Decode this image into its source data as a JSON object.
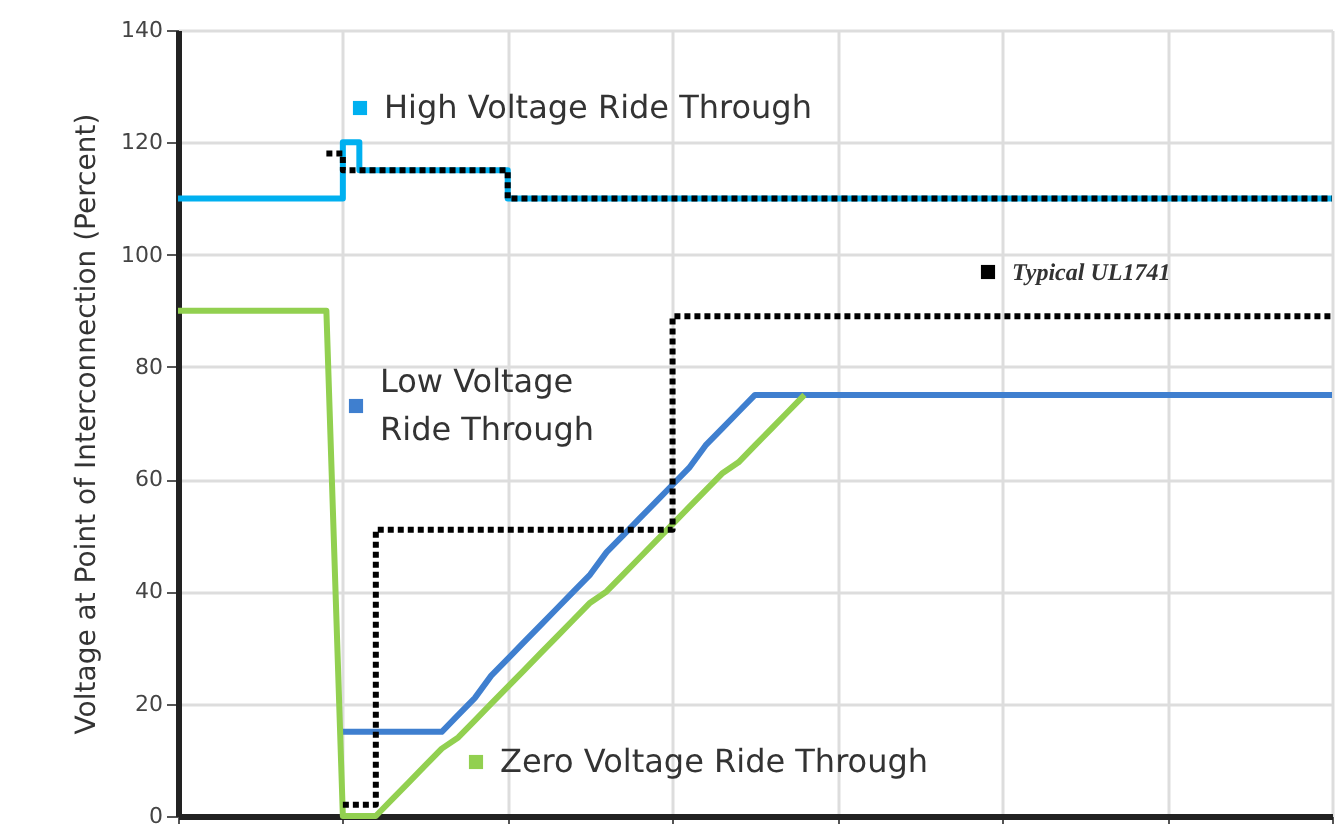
{
  "chart_data": {
    "type": "line",
    "ylabel": "Voltage at Point of Interconnection (Percent)",
    "categories": [
      null,
      null,
      null,
      null,
      null,
      null,
      null,
      null,
      null,
      null,
      null,
      null,
      null,
      null,
      null,
      null,
      null,
      null,
      null,
      null,
      null,
      null,
      null,
      null,
      null,
      null,
      null,
      null,
      null,
      null,
      null,
      null,
      null,
      null,
      null,
      null,
      null,
      null,
      null,
      null,
      null,
      null,
      null,
      null,
      null,
      null,
      null,
      null,
      null,
      null,
      null,
      null,
      null,
      null,
      null,
      null,
      null,
      null,
      null,
      null,
      null,
      null,
      null,
      null,
      null,
      null,
      null,
      null,
      null,
      null,
      null
    ],
    "ylim": [
      0,
      140
    ],
    "yticks": [
      0,
      20,
      40,
      60,
      80,
      100,
      120,
      140
    ],
    "tick_labels": "y",
    "grid": true,
    "marker": "none",
    "legend": "bottom right",
    "series": [
      {
        "name": "High Voltage Ride Through",
        "color": "#00b0f0",
        "type": "step",
        "line_style": "solid",
        "values": [
          110,
          110,
          110,
          110,
          110,
          110,
          110,
          110,
          110,
          110,
          120,
          115,
          115,
          115,
          115,
          115,
          115,
          115,
          115,
          115,
          110,
          110,
          110,
          110,
          110,
          110,
          110,
          110,
          110,
          110,
          110,
          110,
          110,
          110,
          110,
          110,
          110,
          110,
          110,
          110,
          110,
          110,
          110,
          110,
          110,
          110,
          110,
          110,
          110,
          110,
          110,
          110,
          110,
          110,
          110,
          110,
          110,
          110,
          110,
          110,
          110,
          110,
          110,
          110,
          110,
          110,
          110,
          110,
          110,
          110,
          110
        ]
      },
      {
        "name": "Low Voltage Ride Through",
        "color": "#3f7fcf",
        "line_style": "solid",
        "values": [
          null,
          null,
          null,
          null,
          null,
          null,
          null,
          null,
          null,
          null,
          15,
          15,
          15,
          15,
          15,
          15,
          15,
          18,
          21,
          25,
          28,
          31,
          34,
          37,
          40,
          43,
          47,
          50,
          53,
          56,
          59,
          62,
          66,
          69,
          72,
          75,
          75,
          75,
          75,
          75,
          75,
          75,
          75,
          75,
          75,
          75,
          75,
          75,
          75,
          75,
          75,
          75,
          75,
          75,
          75,
          75,
          75,
          75,
          75,
          75,
          75,
          75,
          75,
          75,
          75,
          75,
          75,
          75,
          75,
          75,
          75
        ]
      },
      {
        "name": "Zero Voltage Ride Through",
        "color": "#92d050",
        "line_style": "solid",
        "values": [
          90,
          90,
          90,
          90,
          90,
          90,
          90,
          90,
          90,
          90,
          0,
          0,
          0,
          3,
          6,
          9,
          12,
          14,
          17,
          20,
          23,
          26,
          29,
          32,
          35,
          38,
          40,
          43,
          46,
          49,
          52,
          55,
          58,
          61,
          63,
          66,
          69,
          72,
          75,
          null,
          null,
          null,
          null,
          null,
          null,
          null,
          null,
          null,
          null,
          null,
          null,
          null,
          null,
          null,
          null,
          null,
          null,
          null,
          null,
          null,
          null,
          null,
          null,
          null,
          null,
          null,
          null,
          null,
          null,
          null,
          null
        ]
      },
      {
        "name": "Typical UL1741",
        "color": "#000000",
        "type": "step",
        "line_style": "dotted",
        "values": [
          null,
          null,
          null,
          null,
          null,
          null,
          null,
          null,
          null,
          118,
          115,
          115,
          115,
          115,
          115,
          115,
          115,
          115,
          115,
          115,
          110,
          110,
          110,
          110,
          110,
          110,
          110,
          110,
          110,
          110,
          110,
          110,
          110,
          110,
          110,
          110,
          110,
          110,
          110,
          110,
          110,
          110,
          110,
          110,
          110,
          110,
          110,
          110,
          110,
          110,
          110,
          110,
          110,
          110,
          110,
          110,
          110,
          110,
          110,
          110,
          110,
          110,
          110,
          110,
          110,
          110,
          110,
          110,
          110,
          110,
          110
        ]
      },
      {
        "color": "#000000",
        "type": "step",
        "line_style": "dotted",
        "values": [
          null,
          null,
          null,
          null,
          null,
          null,
          null,
          null,
          null,
          null,
          2,
          2,
          51,
          51,
          51,
          51,
          51,
          51,
          51,
          51,
          51,
          51,
          51,
          51,
          51,
          51,
          51,
          51,
          51,
          51,
          89,
          89,
          89,
          89,
          89,
          89,
          89,
          89,
          89,
          89,
          89,
          89,
          89,
          89,
          89,
          89,
          89,
          89,
          89,
          89,
          89,
          89,
          89,
          89,
          89,
          89,
          89,
          89,
          89,
          89,
          89,
          89,
          89,
          89,
          89,
          89,
          89,
          89,
          89,
          89,
          89
        ]
      }
    ]
  }
}
